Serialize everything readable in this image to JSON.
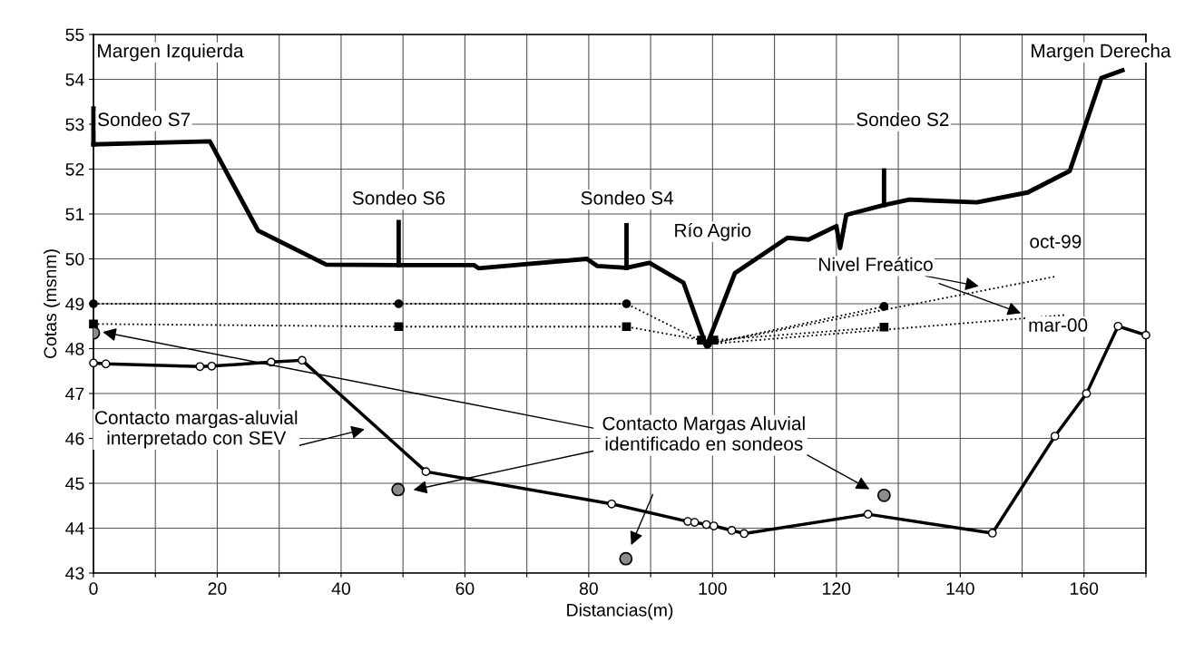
{
  "chart_data": {
    "type": "line",
    "xlabel": "Distancias(m)",
    "ylabel": "Cotas (msnm)",
    "xlim": [
      0,
      170
    ],
    "xticks": [
      0,
      {
        "value": 10,
        "label": null
      },
      20,
      {
        "value": 30,
        "label": null
      },
      40,
      {
        "value": 50,
        "label": null
      },
      60,
      {
        "value": 70,
        "label": null
      },
      80,
      {
        "value": 90,
        "label": null
      },
      100,
      {
        "value": 110,
        "label": null
      },
      120,
      {
        "value": 130,
        "label": null
      },
      140,
      {
        "value": 150,
        "label": null
      },
      160,
      {
        "value": 170,
        "label": null
      }
    ],
    "ylim": [
      43,
      55
    ],
    "yticks": [
      43,
      44,
      45,
      46,
      47,
      48,
      49,
      50,
      51,
      52,
      53,
      54,
      55
    ],
    "grid": true,
    "series": [
      {
        "color": "#000000",
        "marker": "none",
        "line_style": "solid",
        "x": [
          0,
          18.8,
          26.6,
          37.6,
          49.3,
          61.5,
          62.2,
          79.7,
          81.4,
          86.1,
          89.8,
          95.3,
          99.0,
          103.6,
          112.1,
          115.5,
          120.0,
          120.6,
          121.6,
          127.7,
          131.8,
          142.7,
          150.9,
          157.7,
          162.8,
          166.2
        ],
        "values": [
          52.55,
          52.62,
          50.63,
          49.87,
          49.86,
          49.86,
          49.79,
          50.0,
          49.84,
          49.8,
          49.91,
          49.47,
          48.05,
          49.68,
          50.47,
          50.43,
          50.73,
          50.24,
          50.98,
          51.2,
          51.32,
          51.26,
          51.48,
          51.96,
          54.03,
          54.2
        ]
      },
      {
        "color": "#000000",
        "marker": "none",
        "line_style": "solid",
        "x": [
          0,
          0
        ],
        "values": [
          52.55,
          53.35
        ]
      },
      {
        "color": "#000000",
        "marker": "none",
        "line_style": "solid",
        "x": [
          49.3,
          49.3
        ],
        "values": [
          49.86,
          50.82
        ]
      },
      {
        "color": "#000000",
        "marker": "none",
        "line_style": "solid",
        "x": [
          86.1,
          86.1
        ],
        "values": [
          49.8,
          50.75
        ]
      },
      {
        "color": "#000000",
        "marker": "none",
        "line_style": "solid",
        "x": [
          127.7,
          127.7
        ],
        "values": [
          51.2,
          51.97
        ]
      },
      {
        "color": "#000000",
        "marker": "circle",
        "line_style": "solid",
        "x": [
          0,
          2.0,
          17.2,
          19.1,
          28.7,
          33.7,
          53.7,
          83.7,
          96.0,
          97.1,
          99.0,
          100.2,
          103.1,
          105.1,
          125.1,
          145.2,
          155.3,
          160.4,
          165.5,
          170
        ],
        "values": [
          47.68,
          47.66,
          47.6,
          47.61,
          47.7,
          47.74,
          45.26,
          44.54,
          44.15,
          44.13,
          44.08,
          44.05,
          43.95,
          43.88,
          44.31,
          43.89,
          46.05,
          47.0,
          48.5,
          48.3
        ]
      },
      {
        "type": "scatter",
        "color": "#8c8c8c",
        "marker": "circle",
        "x": [
          0,
          49.2,
          86.0,
          127.7
        ],
        "values": [
          48.35,
          44.86,
          43.32,
          44.73
        ]
      },
      {
        "color": "#000000",
        "marker": "circle",
        "line_style": "dotted",
        "x": [
          0,
          49.3,
          86.1,
          99.2,
          127.7
        ],
        "values": [
          49.0,
          49.0,
          49.0,
          48.1,
          48.94
        ]
      },
      {
        "color": "#000000",
        "marker": "square",
        "line_style": "dotted",
        "x": [
          0,
          49.3,
          86.1,
          98.2,
          100.2,
          127.7
        ],
        "values": [
          48.55,
          48.49,
          48.49,
          48.19,
          48.19,
          48.48
        ]
      },
      {
        "color": "#000000",
        "marker": "none",
        "line_style": "dotted",
        "x": [
          99.2,
          155.5
        ],
        "values": [
          48.1,
          49.61
        ]
      },
      {
        "color": "#000000",
        "marker": "none",
        "line_style": "dotted",
        "x": [
          99.2,
          157.0
        ],
        "values": [
          48.1,
          48.75
        ]
      }
    ],
    "annotations": [
      "Margen Izquierda",
      "Margen Derecha",
      "Sondeo S7",
      "Sondeo S6",
      "Sondeo S4",
      "Sondeo S2",
      "Río Agrio",
      "Nivel Freático",
      "oct-99",
      "mar-00",
      "Contacto margas-aluvial\ninterpretado con SEV",
      "Contacto Margas Aluvial\nidentificado en sondeos"
    ]
  }
}
